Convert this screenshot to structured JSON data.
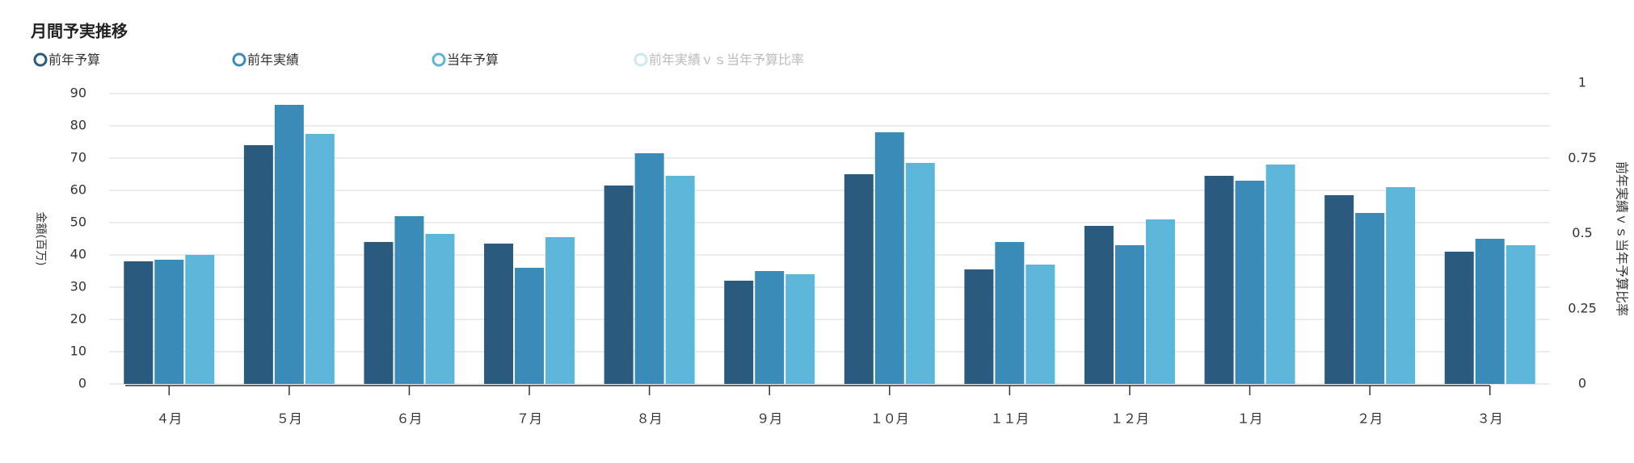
{
  "chart_data": {
    "type": "bar",
    "title": "月間予実推移",
    "y_label": "金額(百万)",
    "y2_label": "前年実績ｖｓ当年予算比率",
    "categories": [
      "４月",
      "５月",
      "６月",
      "７月",
      "８月",
      "９月",
      "１０月",
      "１１月",
      "１２月",
      "１月",
      "２月",
      "３月"
    ],
    "series": [
      {
        "name": "前年予算",
        "color": "#2a5b7e",
        "values": [
          38,
          74,
          44,
          43.5,
          61.5,
          32,
          65,
          35.5,
          49,
          64.5,
          58.5,
          41
        ]
      },
      {
        "name": "前年実績",
        "color": "#3a8bb8",
        "values": [
          38.5,
          86.5,
          52,
          36,
          71.5,
          35,
          78,
          44,
          43,
          63,
          53,
          45
        ]
      },
      {
        "name": "当年予算",
        "color": "#5bb6da",
        "values": [
          40,
          77.5,
          46.5,
          45.5,
          64.5,
          34,
          68.5,
          37,
          51,
          68,
          61,
          43
        ]
      },
      {
        "name": "前年実績ｖｓ当年予算比率",
        "color": "#cde8f3",
        "axis": "y2",
        "hidden": true
      }
    ],
    "ylim": [
      0,
      90
    ],
    "yticks": [
      0,
      10,
      20,
      30,
      40,
      50,
      60,
      70,
      80,
      90
    ],
    "y2lim": [
      0,
      1
    ],
    "y2ticks": [
      0,
      0.25,
      0.5,
      0.75,
      1
    ],
    "grid": true
  }
}
